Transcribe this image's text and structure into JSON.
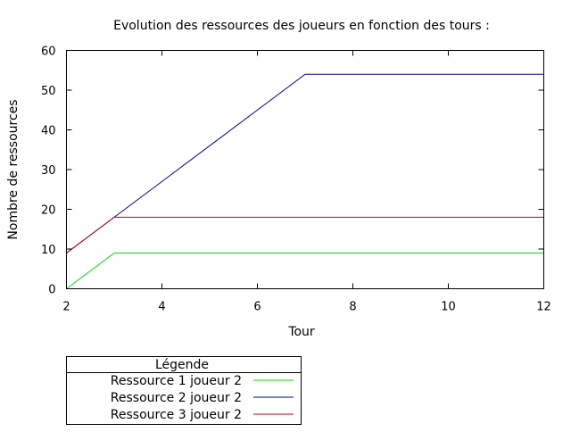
{
  "chart_data": {
    "type": "line",
    "title": "Evolution des ressources des joueurs en fonction des tours :",
    "xlabel": "Tour",
    "ylabel": "Nombre de ressources",
    "xlim": [
      2,
      12
    ],
    "ylim": [
      0,
      60
    ],
    "xticks": [
      2,
      4,
      6,
      8,
      10,
      12
    ],
    "yticks": [
      0,
      10,
      20,
      30,
      40,
      50,
      60
    ],
    "grid": false,
    "legend": {
      "title": "Légende",
      "placement": "below-left"
    },
    "series": [
      {
        "name": "Ressource 1 joueur 2",
        "color": "#00dd00",
        "x": [
          2,
          3,
          4,
          5,
          6,
          7,
          8,
          9,
          10,
          11,
          12
        ],
        "y": [
          0,
          9,
          9,
          9,
          9,
          9,
          9,
          9,
          9,
          9,
          9
        ]
      },
      {
        "name": "Ressource 2 joueur 2",
        "color": "#000099",
        "x": [
          2,
          3,
          4,
          5,
          6,
          7,
          8,
          9,
          10,
          11,
          12
        ],
        "y": [
          9,
          18,
          27,
          36,
          45,
          54,
          54,
          54,
          54,
          54,
          54
        ]
      },
      {
        "name": "Ressource 3 joueur 2",
        "color": "#bb0022",
        "x": [
          2,
          3,
          4,
          5,
          6,
          7,
          8,
          9,
          10,
          11,
          12
        ],
        "y": [
          9,
          18,
          18,
          18,
          18,
          18,
          18,
          18,
          18,
          18,
          18
        ]
      }
    ]
  }
}
